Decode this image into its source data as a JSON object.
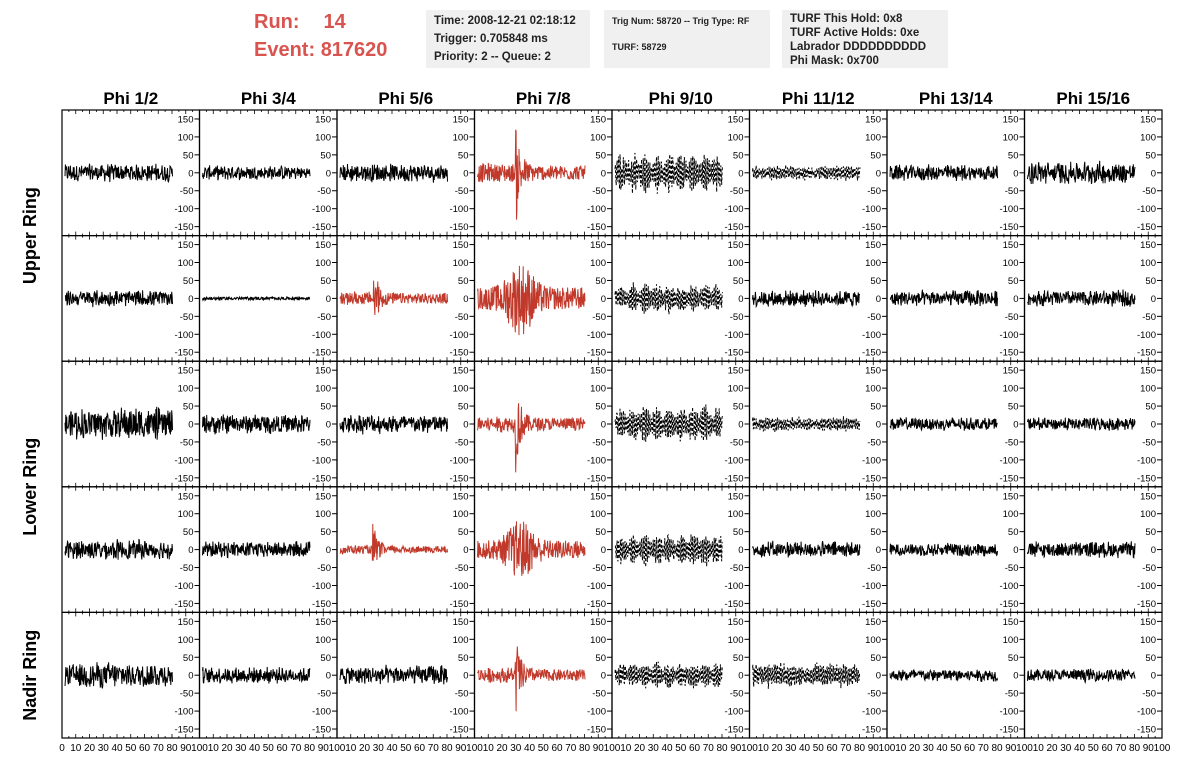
{
  "header": {
    "run_label": "Run:",
    "run_value": "14",
    "event_label": "Event:",
    "event_value": "817620"
  },
  "info_time": {
    "line1": "Time: 2008-12-21 02:18:12",
    "line2": "Trigger: 0.705848 ms",
    "line3": "Priority: 2 -- Queue: 2"
  },
  "info_trig": {
    "line1": "Trig Num: 58720 -- Trig Type: RF",
    "line2": "TURF: 58729"
  },
  "info_turf": {
    "line1": "TURF This Hold: 0x8",
    "line2": "TURF Active Holds: 0xe",
    "line3": "Labrador DDDDDDDDDD",
    "line4": "Phi Mask: 0x700"
  },
  "colors": {
    "normal": "#000000",
    "triggered": "#c0392b",
    "header_red": "#d9534f"
  },
  "chart_data": {
    "type": "line",
    "columns": [
      "Phi 1/2",
      "Phi 3/4",
      "Phi 5/6",
      "Phi 7/8",
      "Phi 9/10",
      "Phi 11/12",
      "Phi 13/14",
      "Phi 15/16"
    ],
    "rows": [
      "Upper Ring",
      "Upper Ring",
      "Lower Ring",
      "Lower Ring",
      "Nadir Ring"
    ],
    "row_labels": [
      "Upper Ring",
      "Lower Ring",
      "Nadir Ring"
    ],
    "ylim": [
      -175,
      175
    ],
    "y_ticks": [
      -150,
      -100,
      -50,
      0,
      50,
      100,
      150
    ],
    "xlim": [
      0,
      100
    ],
    "x_ticks": [
      0,
      10,
      20,
      30,
      40,
      50,
      60,
      70,
      80,
      90,
      100
    ],
    "x_tick_labels_last_row": [
      "0",
      "10",
      "20",
      "30",
      "40",
      "50",
      "60",
      "70",
      "80",
      "90",
      "100"
    ],
    "panels": [
      [
        {
          "style": "solid",
          "color": "normal",
          "amp": 28,
          "env": "flat"
        },
        {
          "style": "solid",
          "color": "normal",
          "amp": 22,
          "env": "flat"
        },
        {
          "style": "solid",
          "color": "normal",
          "amp": 28,
          "env": "flat"
        },
        {
          "style": "solid",
          "color": "triggered",
          "amp": 170,
          "env": "pulse",
          "center": 35
        },
        {
          "style": "dashed",
          "color": "normal",
          "amp": 60,
          "env": "wave"
        },
        {
          "style": "dashed",
          "color": "normal",
          "amp": 25,
          "env": "flat"
        },
        {
          "style": "solid",
          "color": "normal",
          "amp": 25,
          "env": "flat"
        },
        {
          "style": "solid",
          "color": "normal",
          "amp": 35,
          "env": "flat"
        }
      ],
      [
        {
          "style": "solid",
          "color": "normal",
          "amp": 25,
          "env": "flat"
        },
        {
          "style": "solid",
          "color": "normal",
          "amp": 5,
          "env": "flat"
        },
        {
          "style": "solid",
          "color": "triggered",
          "amp": 120,
          "env": "pulse",
          "center": 30
        },
        {
          "style": "solid",
          "color": "triggered",
          "amp": 105,
          "env": "broad",
          "center": 40
        },
        {
          "style": "dashed",
          "color": "normal",
          "amp": 45,
          "env": "wave"
        },
        {
          "style": "solid",
          "color": "normal",
          "amp": 25,
          "env": "flat"
        },
        {
          "style": "solid",
          "color": "normal",
          "amp": 25,
          "env": "flat"
        },
        {
          "style": "solid",
          "color": "normal",
          "amp": 25,
          "env": "flat"
        }
      ],
      [
        {
          "style": "solid",
          "color": "normal",
          "amp": 50,
          "env": "flat"
        },
        {
          "style": "solid",
          "color": "normal",
          "amp": 30,
          "env": "flat"
        },
        {
          "style": "solid",
          "color": "normal",
          "amp": 30,
          "env": "flat"
        },
        {
          "style": "solid",
          "color": "triggered",
          "amp": 145,
          "env": "pulse",
          "center": 35
        },
        {
          "style": "dashed",
          "color": "normal",
          "amp": 55,
          "env": "wave"
        },
        {
          "style": "dashed",
          "color": "normal",
          "amp": 25,
          "env": "flat"
        },
        {
          "style": "solid",
          "color": "normal",
          "amp": 20,
          "env": "flat"
        },
        {
          "style": "solid",
          "color": "normal",
          "amp": 20,
          "env": "flat"
        }
      ],
      [
        {
          "style": "solid",
          "color": "normal",
          "amp": 30,
          "env": "flat"
        },
        {
          "style": "solid",
          "color": "normal",
          "amp": 25,
          "env": "flat"
        },
        {
          "style": "solid",
          "color": "triggered",
          "amp": 80,
          "env": "pulse",
          "center": 30
        },
        {
          "style": "solid",
          "color": "triggered",
          "amp": 85,
          "env": "broad",
          "center": 40
        },
        {
          "style": "dashed",
          "color": "normal",
          "amp": 50,
          "env": "wave"
        },
        {
          "style": "solid",
          "color": "normal",
          "amp": 25,
          "env": "flat"
        },
        {
          "style": "solid",
          "color": "normal",
          "amp": 20,
          "env": "flat"
        },
        {
          "style": "solid",
          "color": "normal",
          "amp": 25,
          "env": "flat"
        }
      ],
      [
        {
          "style": "solid",
          "color": "normal",
          "amp": 40,
          "env": "flat"
        },
        {
          "style": "solid",
          "color": "normal",
          "amp": 25,
          "env": "flat"
        },
        {
          "style": "solid",
          "color": "normal",
          "amp": 30,
          "env": "flat"
        },
        {
          "style": "solid",
          "color": "triggered",
          "amp": 135,
          "env": "pulse",
          "center": 35
        },
        {
          "style": "dashed",
          "color": "normal",
          "amp": 40,
          "env": "wave"
        },
        {
          "style": "dashed",
          "color": "normal",
          "amp": 40,
          "env": "flat"
        },
        {
          "style": "solid",
          "color": "normal",
          "amp": 20,
          "env": "flat"
        },
        {
          "style": "solid",
          "color": "normal",
          "amp": 20,
          "env": "flat"
        }
      ]
    ]
  }
}
